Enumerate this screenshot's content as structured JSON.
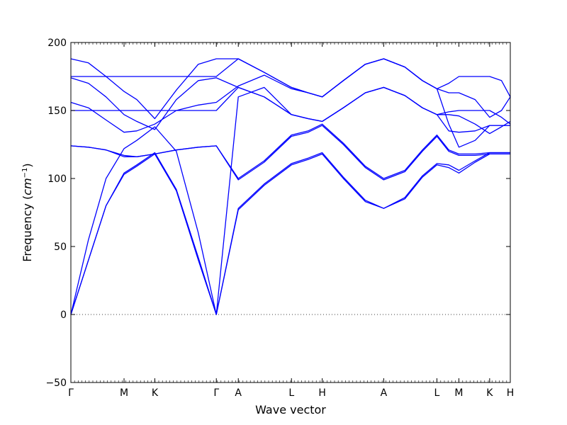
{
  "chart_data": {
    "type": "line",
    "title": "",
    "xlabel": "Wave vector",
    "ylabel": "Frequency",
    "ylabel_unit_base": "cm",
    "ylabel_unit_exp": "−1",
    "ylim": [
      -50,
      200
    ],
    "yticks": [
      -50,
      0,
      50,
      100,
      150,
      200
    ],
    "ytick_labels": [
      "−50",
      "0",
      "50",
      "100",
      "150",
      "200"
    ],
    "xlim": [
      0,
      1
    ],
    "xticks": [
      {
        "label": "Γ",
        "x": 0.0
      },
      {
        "label": "M",
        "x": 0.121
      },
      {
        "label": "K",
        "x": 0.191
      },
      {
        "label": "Γ",
        "x": 0.331
      },
      {
        "label": "A",
        "x": 0.381
      },
      {
        "label": "L",
        "x": 0.502
      },
      {
        "label": "H",
        "x": 0.572
      },
      {
        "label": "A",
        "x": 0.712
      },
      {
        "label": "L",
        "x": 0.833
      },
      {
        "label": "M",
        "x": 0.883
      },
      {
        "label": "K",
        "x": 0.953
      },
      {
        "label": "H",
        "x": 1.0
      }
    ],
    "zero_line": true,
    "line_color": "#0000ff",
    "series": [
      {
        "x": [
          0,
          0.04,
          0.08,
          0.121,
          0.15,
          0.191,
          0.24,
          0.29,
          0.331,
          0.381,
          0.44,
          0.502,
          0.54,
          0.572,
          0.62,
          0.67,
          0.712,
          0.76,
          0.8,
          0.833,
          0.86,
          0.883,
          0.92,
          0.953,
          0.98,
          1.0
        ],
        "y": [
          0,
          40,
          80,
          103,
          109,
          118,
          91,
          40,
          0,
          77,
          95,
          110,
          114,
          118,
          100,
          83,
          78,
          85,
          101,
          110,
          108,
          104,
          112,
          118,
          118,
          118
        ]
      },
      {
        "x": [
          0,
          0.04,
          0.08,
          0.121,
          0.15,
          0.191,
          0.24,
          0.29,
          0.331,
          0.381,
          0.44,
          0.502,
          0.54,
          0.572,
          0.62,
          0.67,
          0.712,
          0.76,
          0.8,
          0.833,
          0.86,
          0.883,
          0.92,
          0.953,
          0.98,
          1.0
        ],
        "y": [
          0,
          40,
          80,
          104,
          110,
          119,
          92,
          42,
          0,
          78,
          96,
          111,
          115,
          119,
          101,
          84,
          78,
          86,
          102,
          111,
          110,
          106,
          113,
          119,
          119,
          119
        ]
      },
      {
        "x": [
          0,
          0.04,
          0.08,
          0.121,
          0.15,
          0.191,
          0.24,
          0.29,
          0.331,
          0.381,
          0.44,
          0.502,
          0.54,
          0.572,
          0.62,
          0.67,
          0.712,
          0.76,
          0.8,
          0.833,
          0.86,
          0.883,
          0.92,
          0.953,
          0.98,
          1.0
        ],
        "y": [
          124,
          123,
          121,
          116,
          116,
          118,
          121,
          123,
          124,
          99,
          112,
          131,
          134,
          139,
          125,
          108,
          99,
          105,
          120,
          131,
          120,
          117,
          117,
          118,
          118,
          118
        ]
      },
      {
        "x": [
          0,
          0.04,
          0.08,
          0.121,
          0.15,
          0.191,
          0.24,
          0.29,
          0.331,
          0.381,
          0.44,
          0.502,
          0.54,
          0.572,
          0.62,
          0.67,
          0.712,
          0.76,
          0.8,
          0.833,
          0.86,
          0.883,
          0.92,
          0.953,
          0.98,
          1.0
        ],
        "y": [
          124,
          123,
          121,
          117,
          116,
          118,
          121,
          123,
          124,
          100,
          113,
          132,
          135,
          140,
          126,
          109,
          100,
          106,
          121,
          132,
          121,
          118,
          118,
          119,
          119,
          119
        ]
      },
      {
        "x": [
          0,
          0.04,
          0.08,
          0.121,
          0.15,
          0.191,
          0.24,
          0.29,
          0.331,
          0.381,
          0.44,
          0.502,
          0.54,
          0.572,
          0.62,
          0.67,
          0.712,
          0.76,
          0.8,
          0.833,
          0.86,
          0.883,
          0.92,
          0.953,
          0.98,
          1.0
        ],
        "y": [
          150,
          150,
          150,
          150,
          150,
          150,
          150,
          150,
          150,
          167,
          160,
          147,
          144,
          142,
          152,
          163,
          167,
          161,
          152,
          147,
          149,
          150,
          150,
          150,
          145,
          140
        ]
      },
      {
        "x": [
          0,
          0.04,
          0.08,
          0.121,
          0.15,
          0.191,
          0.24,
          0.29,
          0.331,
          0.381,
          0.44,
          0.502,
          0.54,
          0.572,
          0.62,
          0.67,
          0.712,
          0.76,
          0.8,
          0.833,
          0.86,
          0.883,
          0.92,
          0.953,
          0.98,
          1.0
        ],
        "y": [
          174,
          170,
          160,
          147,
          142,
          136,
          158,
          172,
          174,
          167,
          160,
          147,
          144,
          142,
          152,
          163,
          167,
          161,
          152,
          147,
          147,
          146,
          140,
          133,
          138,
          142
        ]
      },
      {
        "x": [
          0,
          0.04,
          0.08,
          0.121,
          0.15,
          0.191,
          0.24,
          0.29,
          0.331,
          0.381,
          0.44,
          0.502,
          0.54,
          0.572,
          0.62,
          0.67,
          0.712,
          0.76,
          0.8,
          0.833,
          0.86,
          0.883,
          0.92,
          0.953,
          0.98,
          1.0
        ],
        "y": [
          156,
          152,
          143,
          134,
          135,
          140,
          150,
          154,
          156,
          168,
          176,
          166,
          163,
          160,
          172,
          184,
          188,
          182,
          172,
          166,
          163,
          163,
          158,
          145,
          150,
          160
        ]
      },
      {
        "x": [
          0,
          0.04,
          0.08,
          0.121,
          0.15,
          0.191,
          0.24,
          0.29,
          0.331,
          0.381,
          0.44,
          0.502,
          0.54,
          0.572,
          0.62,
          0.67,
          0.712,
          0.76,
          0.8,
          0.833,
          0.86,
          0.883,
          0.92,
          0.953,
          0.98,
          1.0
        ],
        "y": [
          175,
          175,
          175,
          175,
          175,
          175,
          175,
          175,
          175,
          188,
          178,
          167,
          163,
          160,
          172,
          184,
          188,
          182,
          172,
          166,
          170,
          175,
          175,
          175,
          172,
          160
        ]
      },
      {
        "x": [
          0,
          0.04,
          0.08,
          0.121,
          0.15,
          0.191,
          0.24,
          0.29,
          0.331,
          0.381,
          0.44,
          0.502,
          0.54,
          0.572,
          0.62,
          0.67,
          0.712,
          0.76,
          0.8,
          0.833,
          0.86,
          0.883,
          0.92,
          0.953,
          0.98,
          1.0
        ],
        "y": [
          188,
          185,
          175,
          164,
          158,
          144,
          165,
          184,
          188,
          188,
          178,
          167,
          163,
          160,
          172,
          184,
          188,
          182,
          172,
          166,
          140,
          123,
          128,
          139,
          139,
          139
        ]
      },
      {
        "x": [
          0,
          0.04,
          0.08,
          0.121,
          0.15,
          0.191,
          0.24,
          0.29,
          0.331,
          0.381,
          0.44,
          0.502,
          0.54,
          0.572,
          0.62,
          0.67,
          0.712,
          0.76,
          0.8,
          0.833,
          0.86,
          0.883,
          0.92,
          0.953,
          0.98,
          1.0
        ],
        "y": [
          0,
          55,
          100,
          122,
          128,
          138,
          120,
          60,
          0,
          160,
          167,
          147,
          144,
          142,
          152,
          163,
          167,
          161,
          152,
          147,
          135,
          134,
          135,
          139,
          139,
          139
        ]
      }
    ]
  }
}
